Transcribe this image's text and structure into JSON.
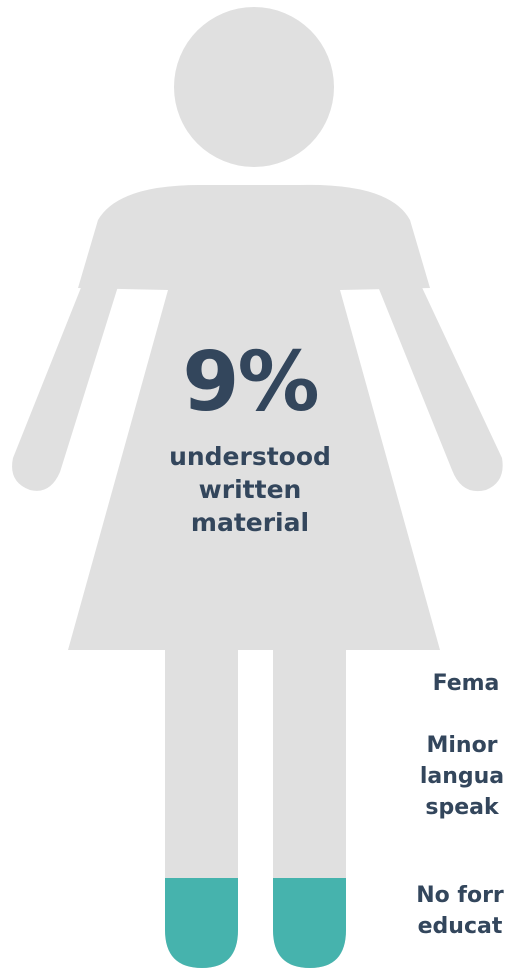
{
  "colors": {
    "figure": "#e0e0e0",
    "feet_highlight": "#46b3ad",
    "text": "#33465c"
  },
  "stat": {
    "value": "9%",
    "caption": [
      "understood",
      "written",
      "material"
    ]
  },
  "legend": [
    {
      "lines": [
        "Fema"
      ]
    },
    {
      "lines": [
        "Minor",
        "langua",
        "speak"
      ]
    },
    {
      "lines": [
        "No forr",
        "educat"
      ]
    }
  ]
}
